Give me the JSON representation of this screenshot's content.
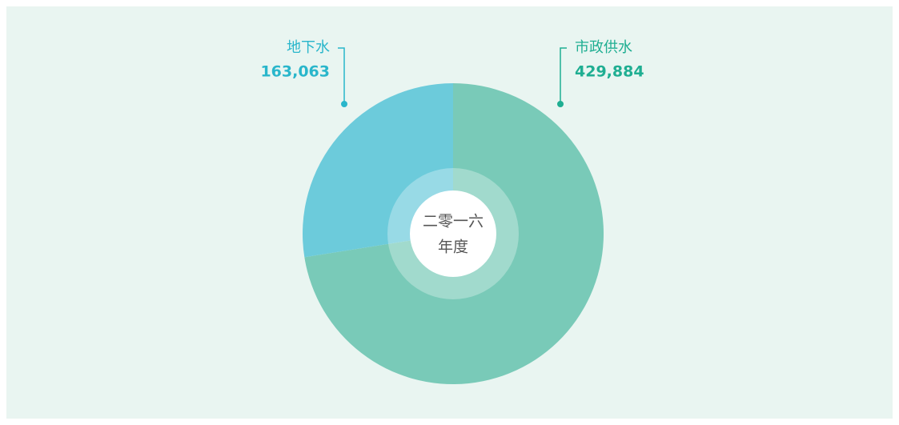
{
  "chart_data": {
    "type": "pie",
    "categories": [
      "市政供水",
      "地下水"
    ],
    "values": [
      429884,
      163063
    ],
    "value_labels": [
      "429,884",
      "163,063"
    ],
    "colors": [
      "#79cab8",
      "#6ccbdb"
    ],
    "label_colors": [
      "#1fae92",
      "#29b6cb"
    ],
    "center_text": [
      "二零一六",
      "年度"
    ]
  }
}
